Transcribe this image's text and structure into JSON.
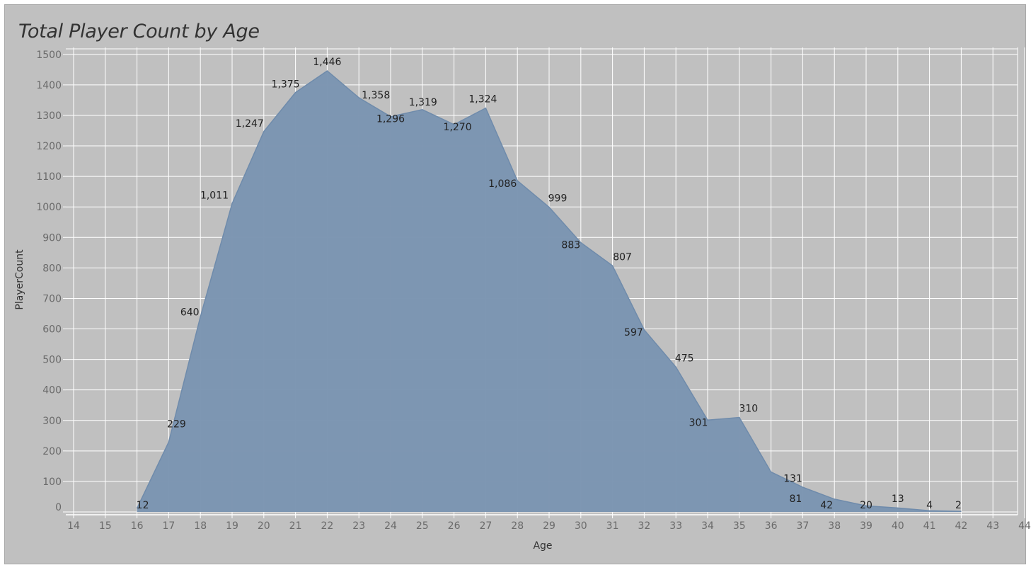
{
  "chart_data": {
    "type": "area",
    "title": "Total Player Count by Age",
    "xlabel": "Age",
    "ylabel": "PlayerCount",
    "xlim": [
      14,
      44
    ],
    "ylim": [
      0,
      1500
    ],
    "x_ticks": [
      14,
      15,
      16,
      17,
      18,
      19,
      20,
      21,
      22,
      23,
      24,
      25,
      26,
      27,
      28,
      29,
      30,
      31,
      32,
      33,
      34,
      35,
      36,
      37,
      38,
      39,
      40,
      41,
      42,
      43,
      44
    ],
    "y_ticks": [
      0,
      100,
      200,
      300,
      400,
      500,
      600,
      700,
      800,
      900,
      1000,
      1100,
      1200,
      1300,
      1400,
      1500
    ],
    "grid": true,
    "x": [
      16,
      17,
      18,
      19,
      20,
      21,
      22,
      23,
      24,
      25,
      26,
      27,
      28,
      29,
      30,
      31,
      32,
      33,
      34,
      35,
      36,
      37,
      38,
      39,
      40,
      41,
      42
    ],
    "values": [
      12,
      229,
      640,
      1011,
      1247,
      1375,
      1446,
      1358,
      1296,
      1319,
      1270,
      1324,
      1086,
      999,
      883,
      807,
      597,
      475,
      301,
      310,
      131,
      81,
      42,
      20,
      13,
      4,
      2
    ],
    "data_labels": [
      "12",
      "229",
      "640",
      "1,011",
      "1,247",
      "1,375",
      "1,446",
      "1,358",
      "1,296",
      "1,319",
      "1,270",
      "1,324",
      "1,086",
      "999",
      "883",
      "807",
      "597",
      "475",
      "301",
      "310",
      "131",
      "81",
      "42",
      "20",
      "13",
      "4",
      "2"
    ],
    "colors": {
      "fill": "#7b95b1",
      "line": "#6f8bab",
      "background": "#c0c0c0",
      "grid": "#ffffff"
    }
  }
}
